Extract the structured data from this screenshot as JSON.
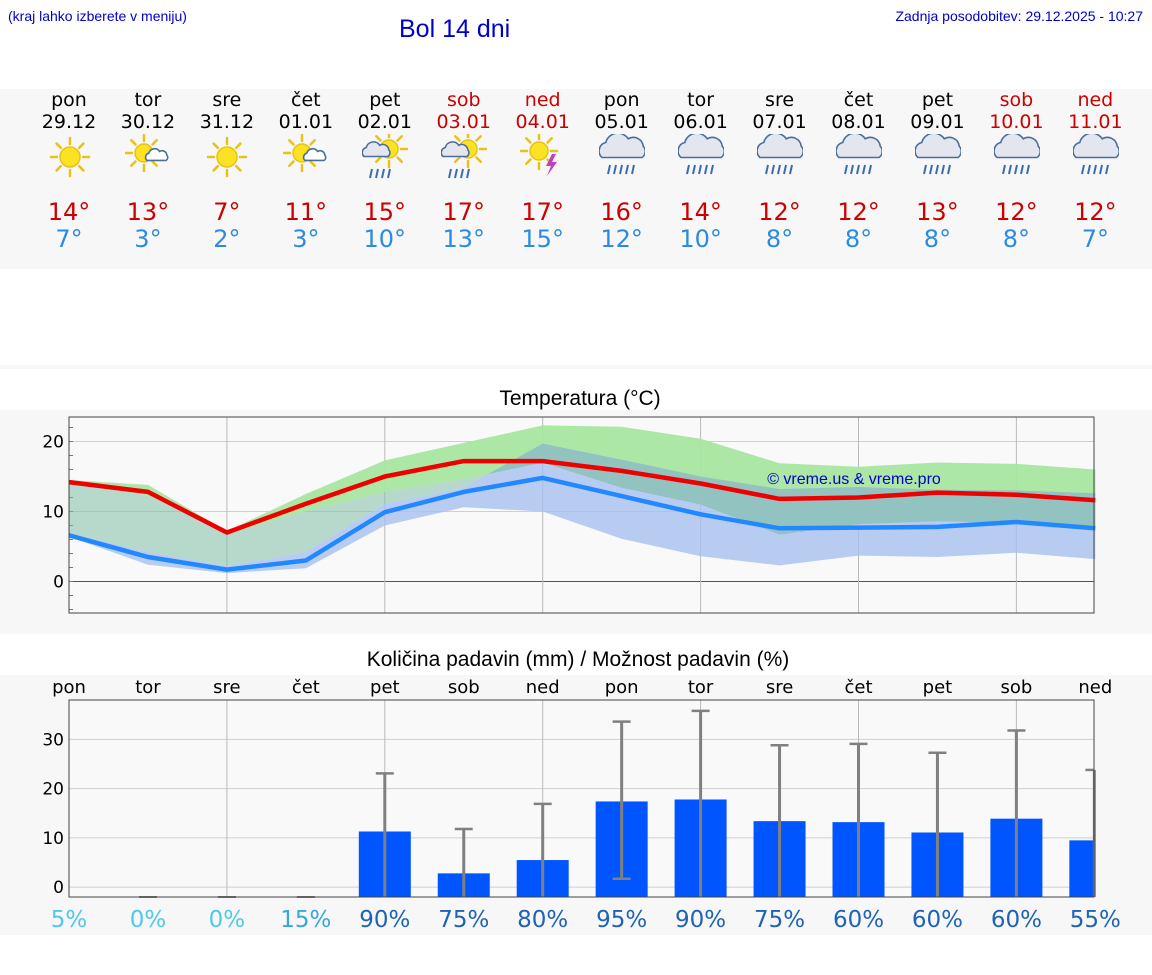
{
  "header": {
    "location_hint": "(kraj lahko izberete v meniju)",
    "title": "Bol 14 dni",
    "last_update": "Zadnja posodobitev: 29.12.2025 - 10:27"
  },
  "colors": {
    "accent": "#0000cc",
    "max_temp": "#cc0000",
    "min_temp": "#2a8be0",
    "max_line": "#ee0000",
    "min_line": "#2288ff",
    "max_band": "#a8e6a0",
    "min_band": "#a8c0f0",
    "bar": "#0055ff"
  },
  "days": [
    {
      "name": "pon",
      "date": "29.12",
      "weekend": false,
      "icon": "sun-icon",
      "max": "14°",
      "min": "7°"
    },
    {
      "name": "tor",
      "date": "30.12",
      "weekend": false,
      "icon": "sun-cloud-icon",
      "max": "13°",
      "min": "3°"
    },
    {
      "name": "sre",
      "date": "31.12",
      "weekend": false,
      "icon": "sun-icon",
      "max": "7°",
      "min": "2°"
    },
    {
      "name": "čet",
      "date": "01.01",
      "weekend": false,
      "icon": "sun-cloud-icon",
      "max": "11°",
      "min": "3°"
    },
    {
      "name": "pet",
      "date": "02.01",
      "weekend": false,
      "icon": "sun-cloud-rain-icon",
      "max": "15°",
      "min": "10°"
    },
    {
      "name": "sob",
      "date": "03.01",
      "weekend": true,
      "icon": "sun-cloud-rain-icon",
      "max": "17°",
      "min": "13°"
    },
    {
      "name": "ned",
      "date": "04.01",
      "weekend": true,
      "icon": "sun-storm-icon",
      "max": "17°",
      "min": "15°"
    },
    {
      "name": "pon",
      "date": "05.01",
      "weekend": false,
      "icon": "rain-cloud-icon",
      "max": "16°",
      "min": "12°"
    },
    {
      "name": "tor",
      "date": "06.01",
      "weekend": false,
      "icon": "rain-cloud-icon",
      "max": "14°",
      "min": "10°"
    },
    {
      "name": "sre",
      "date": "07.01",
      "weekend": false,
      "icon": "rain-cloud-icon",
      "max": "12°",
      "min": "8°"
    },
    {
      "name": "čet",
      "date": "08.01",
      "weekend": false,
      "icon": "rain-cloud-icon",
      "max": "12°",
      "min": "8°"
    },
    {
      "name": "pet",
      "date": "09.01",
      "weekend": false,
      "icon": "rain-cloud-icon",
      "max": "13°",
      "min": "8°"
    },
    {
      "name": "sob",
      "date": "10.01",
      "weekend": true,
      "icon": "rain-cloud-icon",
      "max": "12°",
      "min": "8°"
    },
    {
      "name": "ned",
      "date": "11.01",
      "weekend": true,
      "icon": "rain-cloud-icon",
      "max": "12°",
      "min": "7°"
    }
  ],
  "chart_data": [
    {
      "type": "line",
      "title": "Temperatura (°C)",
      "watermark": "© vreme.us & vreme.pro",
      "x": [
        0,
        1,
        2,
        3,
        4,
        5,
        6,
        7,
        8,
        9,
        10,
        11,
        12,
        13
      ],
      "ylim": [
        -4.5,
        23.5
      ],
      "yticks": [
        0,
        10,
        20
      ],
      "grid": true,
      "series": [
        {
          "name": "max",
          "values": [
            14.2,
            12.8,
            7.0,
            11.1,
            15.0,
            17.2,
            17.2,
            15.8,
            14.0,
            11.8,
            12.0,
            12.7,
            12.4,
            11.6
          ],
          "band_lo": [
            14.0,
            12.3,
            6.8,
            10.0,
            12.8,
            14.6,
            17.0,
            13.4,
            11.0,
            6.7,
            8.2,
            8.6,
            8.4,
            7.8
          ],
          "band_hi": [
            14.5,
            13.8,
            7.2,
            12.5,
            17.3,
            19.8,
            22.3,
            22.1,
            20.4,
            16.9,
            16.4,
            17.0,
            16.8,
            16.0
          ]
        },
        {
          "name": "min",
          "values": [
            6.6,
            3.5,
            1.7,
            3.0,
            9.9,
            12.8,
            14.8,
            12.2,
            9.6,
            7.6,
            7.7,
            7.8,
            8.5,
            7.6
          ],
          "band_lo": [
            6.4,
            2.4,
            1.2,
            1.9,
            8.0,
            10.6,
            10.0,
            6.1,
            3.6,
            2.3,
            3.7,
            3.5,
            4.1,
            3.2
          ],
          "band_hi": [
            6.9,
            4.2,
            2.2,
            4.2,
            11.1,
            13.4,
            19.7,
            17.4,
            15.0,
            13.2,
            13.5,
            13.1,
            13.0,
            12.6
          ]
        }
      ]
    },
    {
      "type": "bar",
      "title": "Količina padavin (mm) / Možnost padavin (%)",
      "categories": [
        "pon",
        "tor",
        "sre",
        "čet",
        "pet",
        "sob",
        "ned",
        "pon",
        "tor",
        "sre",
        "čet",
        "pet",
        "sob",
        "ned"
      ],
      "values": [
        0,
        0,
        0,
        0,
        11.3,
        2.8,
        5.5,
        17.4,
        17.8,
        13.4,
        13.2,
        11.1,
        13.9,
        9.5
      ],
      "err_low": [
        0,
        0,
        0,
        0,
        0,
        0,
        0,
        1.7,
        0,
        0,
        0,
        0,
        0,
        0
      ],
      "err_high": [
        0,
        0,
        0,
        0,
        23.1,
        11.8,
        16.9,
        33.6,
        35.8,
        28.8,
        29.1,
        27.3,
        31.8,
        23.8
      ],
      "probability": [
        "5%",
        "0%",
        "0%",
        "15%",
        "90%",
        "75%",
        "80%",
        "95%",
        "90%",
        "75%",
        "60%",
        "60%",
        "60%",
        "55%"
      ],
      "prob_colors": [
        "#4fc9e8",
        "#4fc9e8",
        "#4fc9e8",
        "#3aa6dc",
        "#1f63b6",
        "#1f63b6",
        "#1f63b6",
        "#1f63b6",
        "#1f63b6",
        "#1f63b6",
        "#1f63b6",
        "#1f63b6",
        "#1f63b6",
        "#1f63b6"
      ],
      "ylim": [
        -2,
        38
      ],
      "yticks": [
        0,
        10,
        20,
        30
      ],
      "grid": true
    }
  ]
}
